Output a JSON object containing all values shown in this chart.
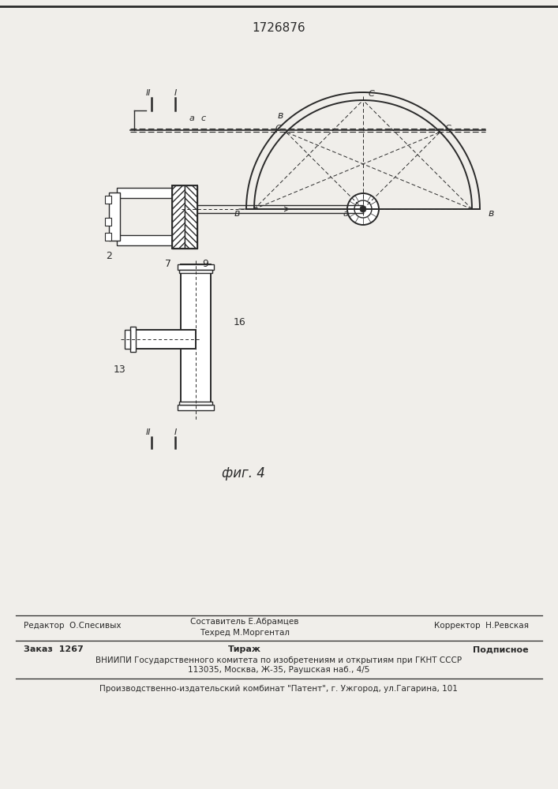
{
  "title": "1726876",
  "fig_label": "фиг. 4",
  "background_color": "#f0eeea",
  "line_color": "#2a2a2a",
  "footer_lines": [
    [
      "Редактор  О.Спесивых",
      "Составитель Е.Абрамцев",
      "Корректор  Н.Ревская"
    ],
    [
      "Техред М.Моргентал",
      "",
      ""
    ],
    [
      "Заказ  1267",
      "Тираж",
      "Подписное"
    ],
    [
      "ВНИИПИ Государственного комитета по изобретениям и открытиям при ГКНТ СССР"
    ],
    [
      "113035, Москва, Ж-35, Раушская наб., 4/5"
    ],
    [
      "Производственно-издательский комбинат \"Патент\", г. Ужгород, ул.Гагарина, 101"
    ]
  ]
}
